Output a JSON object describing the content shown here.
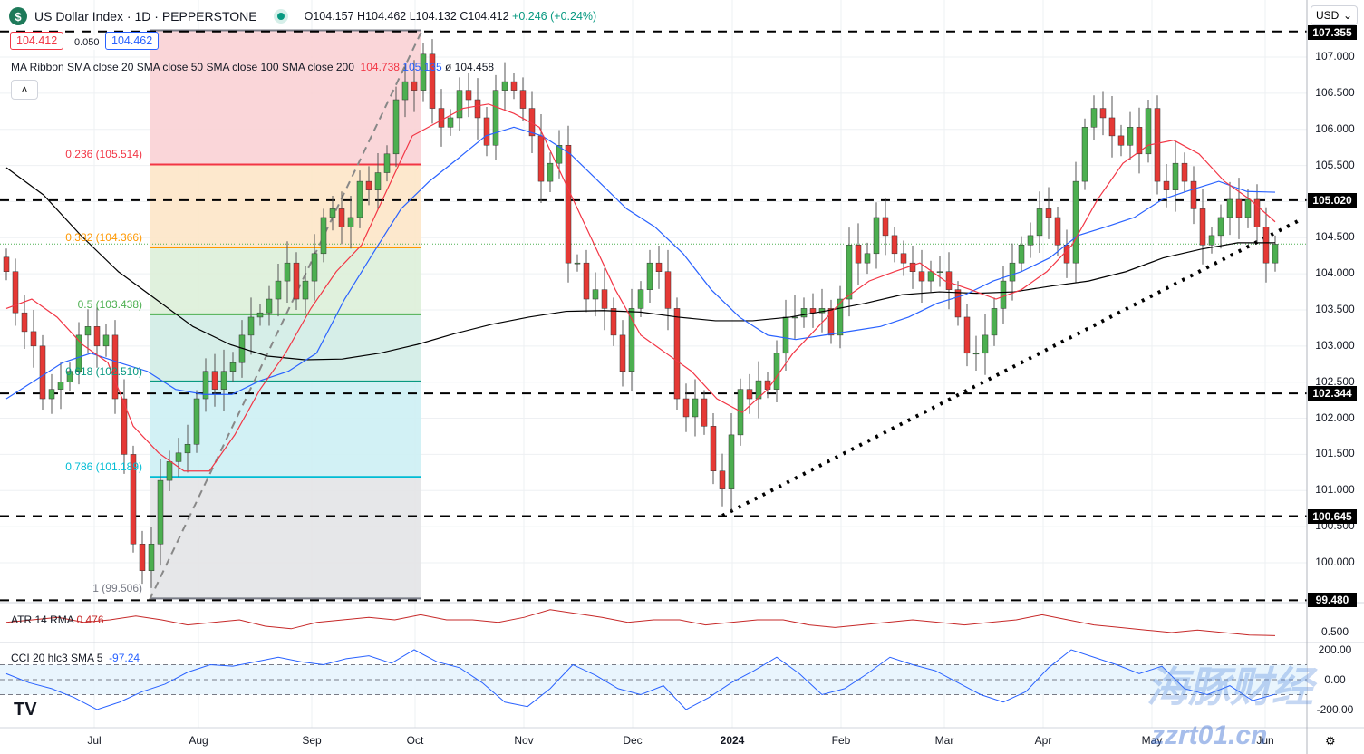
{
  "header": {
    "symbol": "US Dollar Index",
    "interval": "1D",
    "exchange": "PEPPERSTONE",
    "title": "US Dollar Index · 1D · PEPPERSTONE",
    "open": "O104.157",
    "high": "H104.462",
    "low": "L104.132",
    "close": "C104.412",
    "change": "+0.246 (+0.24%)",
    "logo": "$"
  },
  "price_boxes": {
    "bid": "104.412",
    "spread": "0.050",
    "ask": "104.462"
  },
  "ma_legend": {
    "label": "MA Ribbon SMA close 20 SMA close 50 SMA close 100 SMA close 200",
    "v1": "104.738",
    "v2": "105.135",
    "v3": "ø 104.458"
  },
  "atr_legend": {
    "label": "ATR 14 RMA",
    "value": "0.476"
  },
  "cci_legend": {
    "label": "CCI 20 hlc3 SMA 5",
    "value": "-97.24"
  },
  "currency": "USD",
  "watermark": {
    "cn": "海豚财经",
    "url": "zzrt01.cn"
  },
  "colors": {
    "up": "#4caf50",
    "down": "#e53935",
    "sma20": "#f23645",
    "sma50": "#2962ff",
    "sma200": "#000000",
    "atr": "#c62828",
    "cci": "#2962ff"
  },
  "chart_data": {
    "type": "candlestick",
    "price_axis": {
      "ticks": [
        "107.000",
        "106.500",
        "106.000",
        "105.500",
        "104.500",
        "104.000",
        "103.500",
        "103.000",
        "102.500",
        "102.000",
        "101.500",
        "101.000",
        "100.500",
        "100.000"
      ],
      "range": [
        99.3,
        107.4
      ]
    },
    "price_tags": [
      "107.355",
      "105.020",
      "102.344",
      "100.645",
      "99.480"
    ],
    "x_labels": [
      "Jul",
      "Aug",
      "Sep",
      "Oct",
      "Nov",
      "Dec",
      "2024",
      "Feb",
      "Mar",
      "Apr",
      "May",
      "Jun"
    ],
    "close": [
      104.03,
      103.46,
      103.2,
      103.0,
      102.27,
      102.4,
      102.5,
      102.65,
      103.15,
      103.27,
      103.0,
      103.15,
      102.27,
      101.5,
      100.26,
      99.89,
      100.26,
      101.14,
      101.4,
      101.52,
      101.64,
      102.27,
      102.65,
      102.4,
      102.65,
      102.77,
      103.15,
      103.4,
      103.46,
      103.65,
      103.9,
      104.15,
      103.65,
      103.9,
      104.28,
      104.78,
      104.9,
      104.65,
      104.78,
      105.28,
      105.16,
      105.4,
      105.66,
      106.41,
      106.66,
      106.54,
      107.04,
      106.29,
      106.03,
      106.16,
      106.54,
      106.41,
      106.16,
      105.78,
      106.54,
      106.66,
      106.54,
      106.29,
      105.91,
      105.28,
      105.53,
      105.78,
      104.15,
      104.15,
      103.65,
      103.78,
      103.52,
      103.15,
      102.65,
      103.52,
      103.78,
      104.15,
      104.03,
      103.52,
      102.27,
      102.02,
      102.27,
      101.89,
      101.27,
      101.02,
      101.77,
      102.4,
      102.27,
      102.52,
      102.4,
      102.9,
      103.4,
      103.4,
      103.52,
      103.46,
      103.52,
      103.15,
      103.65,
      104.4,
      104.15,
      104.28,
      104.78,
      104.53,
      104.28,
      104.15,
      104.03,
      103.9,
      104.03,
      104.03,
      103.78,
      103.4,
      102.9,
      102.9,
      103.15,
      103.52,
      103.9,
      104.15,
      104.4,
      104.53,
      104.9,
      104.78,
      104.4,
      104.15,
      105.28,
      106.03,
      106.29,
      106.16,
      105.91,
      105.78,
      106.03,
      105.66,
      106.29,
      105.28,
      105.16,
      105.53,
      105.28,
      104.9,
      104.4,
      104.53,
      104.78,
      105.03,
      104.78,
      105.03,
      104.65,
      104.15,
      104.41
    ],
    "sma20": [
      103.52,
      103.65,
      103.4,
      103.02,
      102.77,
      101.89,
      101.52,
      101.27,
      101.27,
      101.77,
      102.4,
      102.9,
      103.52,
      104.03,
      104.4,
      105.16,
      105.91,
      106.1,
      106.29,
      106.35,
      106.22,
      106.03,
      105.28,
      104.53,
      103.78,
      103.15,
      102.9,
      102.65,
      102.27,
      102.08,
      102.4,
      102.9,
      103.27,
      103.65,
      103.9,
      104.03,
      104.15,
      103.9,
      103.78,
      103.65,
      103.78,
      104.03,
      104.4,
      105.03,
      105.53,
      105.78,
      105.85,
      105.66,
      105.28,
      105.03,
      104.72
    ],
    "sma50": [
      102.27,
      102.52,
      102.77,
      102.9,
      102.77,
      102.65,
      102.4,
      102.33,
      102.33,
      102.52,
      102.65,
      102.9,
      103.65,
      104.28,
      104.9,
      105.28,
      105.59,
      105.91,
      106.03,
      105.91,
      105.66,
      105.28,
      104.9,
      104.65,
      104.28,
      103.78,
      103.4,
      103.15,
      103.09,
      103.15,
      103.21,
      103.27,
      103.4,
      103.59,
      103.71,
      103.9,
      104.03,
      104.22,
      104.53,
      104.65,
      104.78,
      105.03,
      105.16,
      105.28,
      105.14,
      105.13
    ],
    "sma200": [
      105.47,
      105.09,
      104.53,
      104.03,
      103.65,
      103.27,
      103.02,
      102.86,
      102.81,
      102.82,
      102.9,
      103.02,
      103.17,
      103.3,
      103.4,
      103.48,
      103.49,
      103.47,
      103.4,
      103.35,
      103.35,
      103.4,
      103.49,
      103.59,
      103.71,
      103.75,
      103.73,
      103.75,
      103.83,
      103.9,
      104.03,
      104.22,
      104.34,
      104.43,
      104.43
    ],
    "atr": [
      0.58,
      0.6,
      0.62,
      0.58,
      0.6,
      0.63,
      0.6,
      0.56,
      0.58,
      0.6,
      0.55,
      0.53,
      0.58,
      0.6,
      0.62,
      0.6,
      0.64,
      0.6,
      0.6,
      0.58,
      0.62,
      0.68,
      0.65,
      0.62,
      0.58,
      0.6,
      0.6,
      0.56,
      0.58,
      0.6,
      0.6,
      0.56,
      0.54,
      0.56,
      0.58,
      0.6,
      0.58,
      0.56,
      0.58,
      0.6,
      0.64,
      0.6,
      0.56,
      0.54,
      0.52,
      0.5,
      0.52,
      0.5,
      0.48,
      0.476
    ],
    "cci": [
      40,
      -20,
      -60,
      -120,
      -200,
      -150,
      -80,
      -30,
      50,
      100,
      90,
      120,
      150,
      120,
      100,
      140,
      160,
      110,
      200,
      120,
      80,
      -20,
      -150,
      -180,
      -60,
      100,
      30,
      -60,
      -100,
      -40,
      -200,
      -120,
      -20,
      60,
      150,
      40,
      -100,
      -60,
      40,
      150,
      100,
      60,
      -20,
      -100,
      -150,
      -80,
      80,
      200,
      150,
      100,
      40,
      90,
      -60,
      -100,
      -40,
      -140,
      -97.24
    ],
    "fib": {
      "levels": [
        {
          "r": "0",
          "p": 107.37
        },
        {
          "r": "0.236",
          "p": 105.514
        },
        {
          "r": "0.382",
          "p": 104.366
        },
        {
          "r": "0.5",
          "p": 103.438
        },
        {
          "r": "0.618",
          "p": 102.51
        },
        {
          "r": "0.786",
          "p": 101.189
        },
        {
          "r": "1",
          "p": 99.506
        }
      ],
      "labels": [
        "0.236 (105.514)",
        "0.382 (104.366)",
        "0.5 (103.438)",
        "0.618 (102.510)",
        "0.786 (101.189)",
        "1 (99.506)"
      ],
      "line_colors": [
        "#787b86",
        "#f23645",
        "#ff9800",
        "#4caf50",
        "#089981",
        "#00bcd4",
        "#787b86"
      ],
      "fill_colors": [
        "#f9d2d5",
        "#fde6c8",
        "#ddefd9",
        "#d2ece6",
        "#cdf0f4",
        "#e3e4e7"
      ]
    },
    "hlines": [
      107.355,
      105.02,
      102.344,
      100.645,
      99.48
    ],
    "last_price": 104.412
  }
}
